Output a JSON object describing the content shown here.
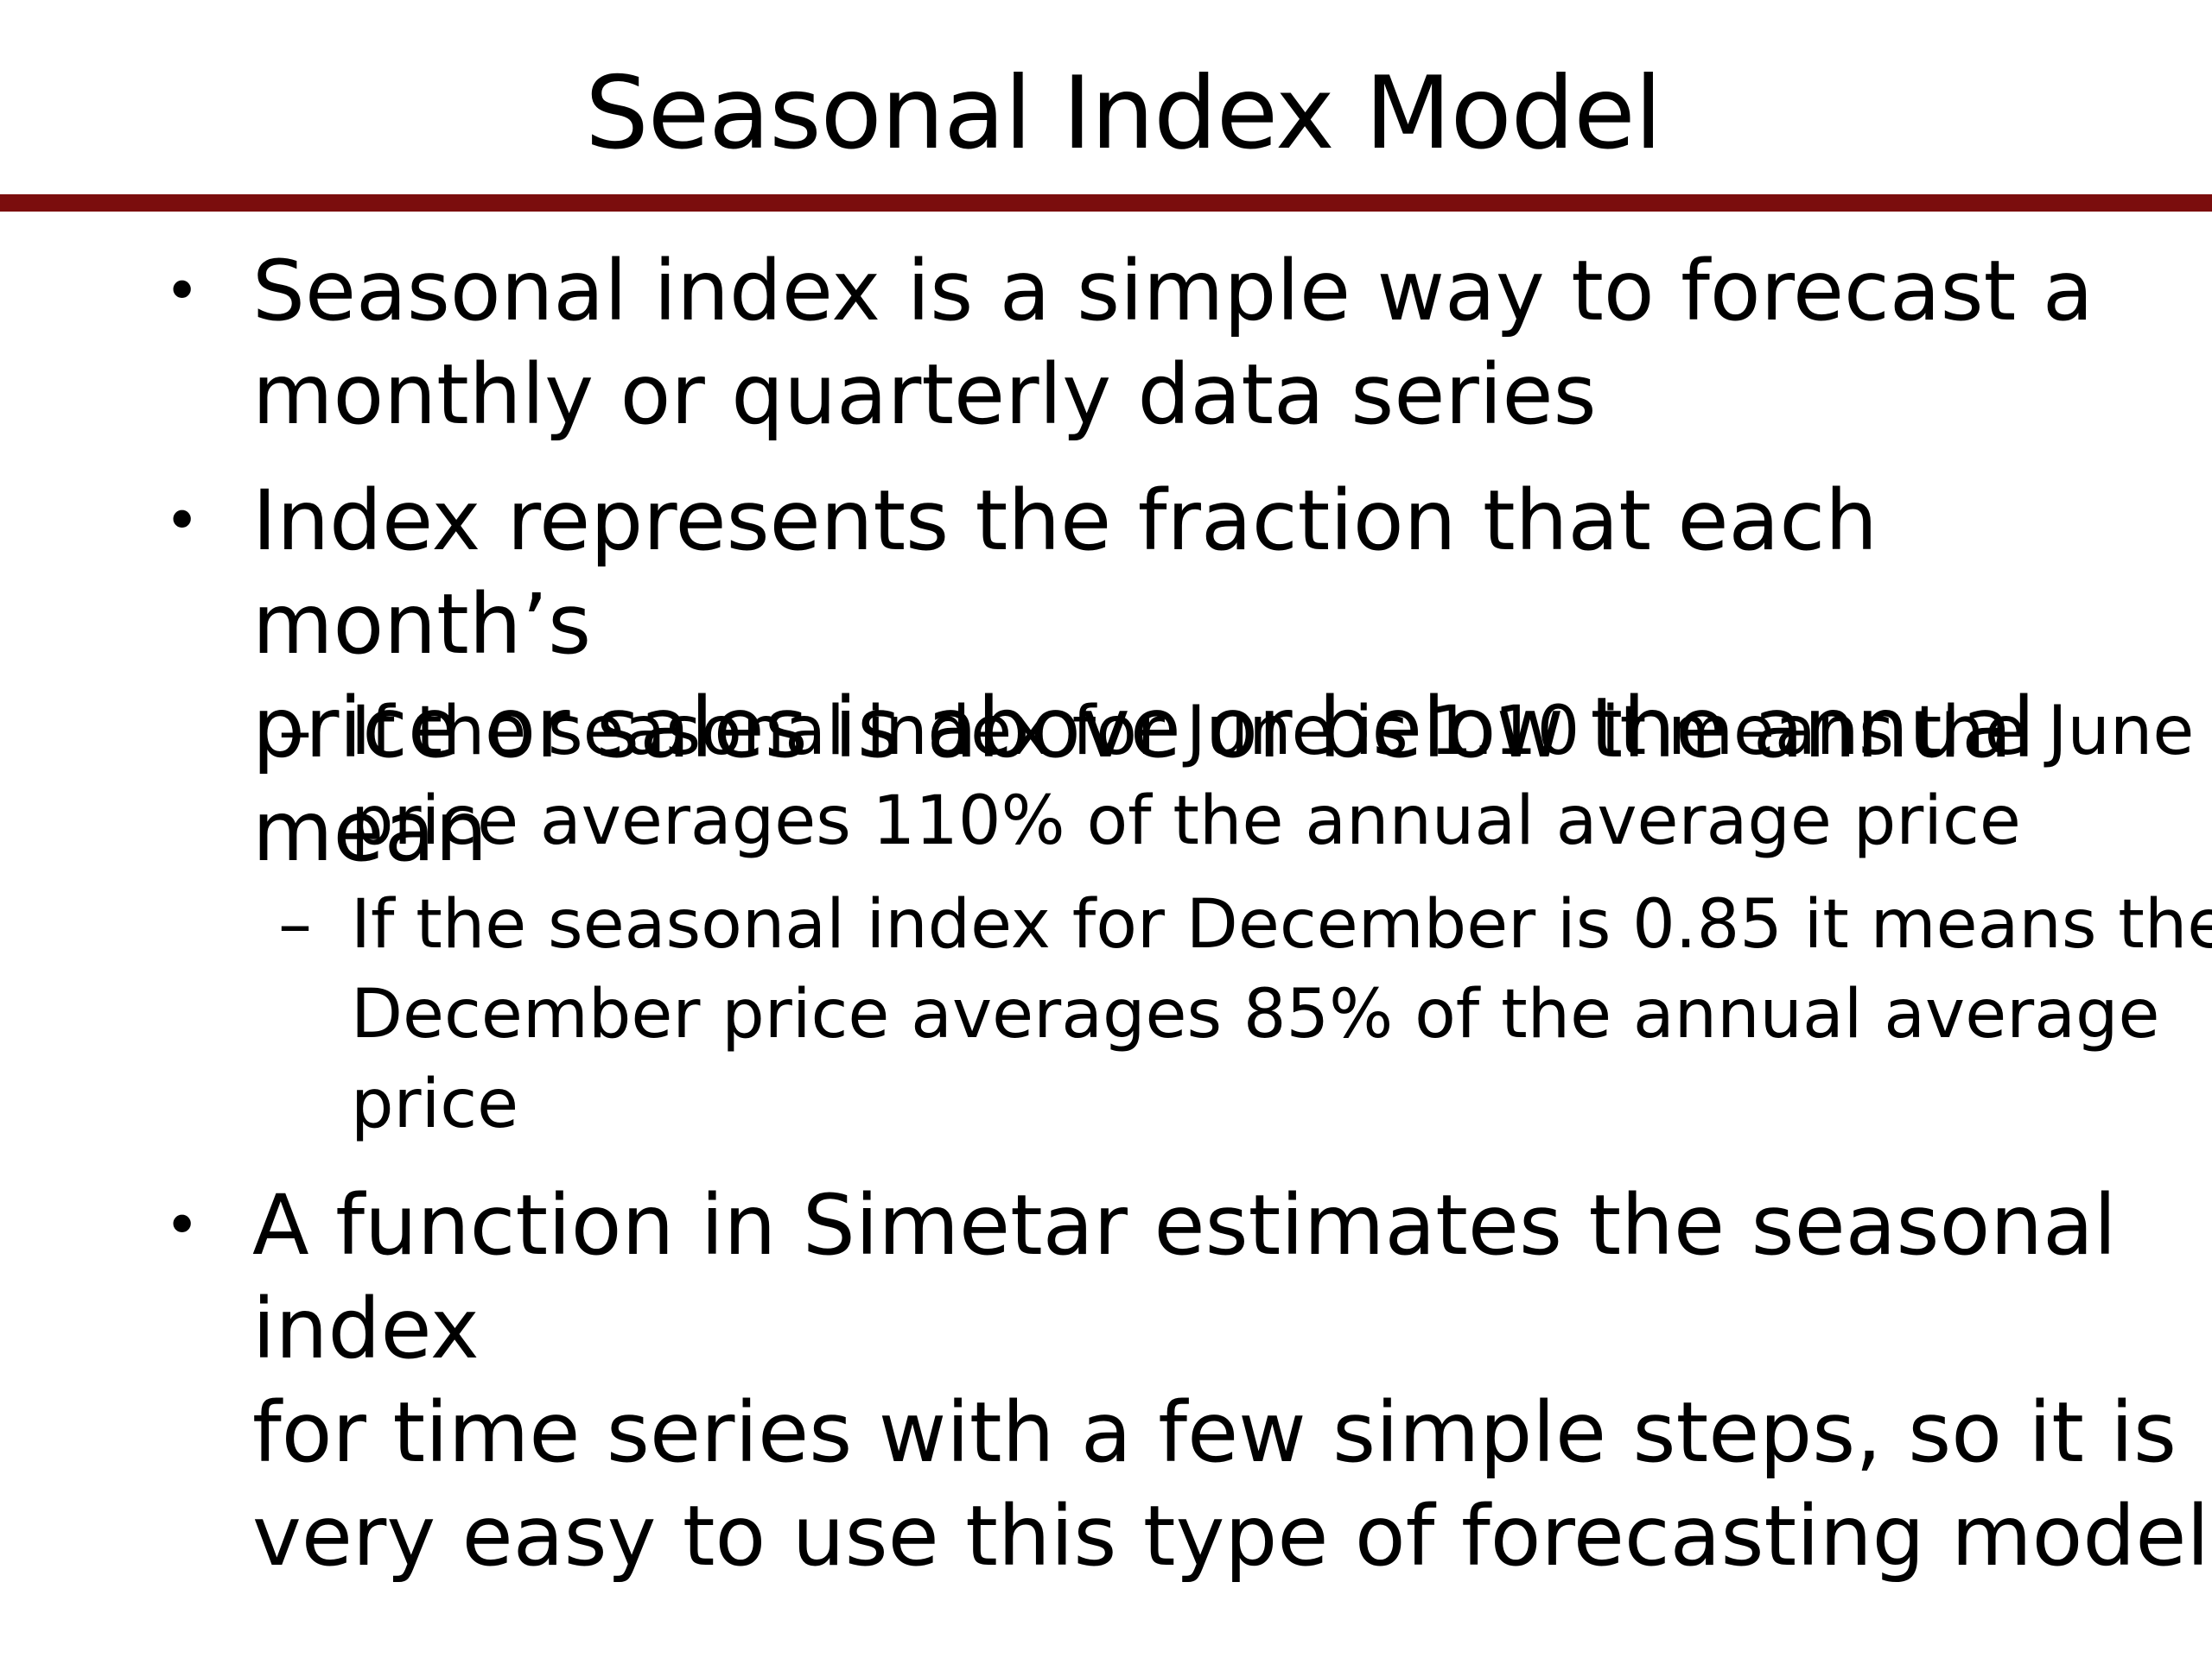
{
  "slide": {
    "title": "Seasonal Index Model",
    "rule_color": "#7b0d0d",
    "bullets": [
      {
        "marker": "•",
        "text": "Seasonal index is a simple way to forecast a\nmonthly or quarterly data series"
      },
      {
        "marker": "•",
        "text": "Index represents the fraction that each month’s\nprice or sales is above or below the annual mean"
      },
      {
        "marker": "•",
        "text": "A function in Simetar estimates the seasonal index\nfor time series with a few simple steps, so it is\nvery easy to use this type of forecasting model"
      }
    ],
    "sub_bullets": [
      {
        "marker": "–",
        "text": "If the seasonal index for June is 1.10 it means the June\nprice averages 110% of the annual average price"
      },
      {
        "marker": "–",
        "text": "If the seasonal index for December is 0.85 it means the\nDecember price averages 85% of the annual average\nprice"
      }
    ]
  }
}
